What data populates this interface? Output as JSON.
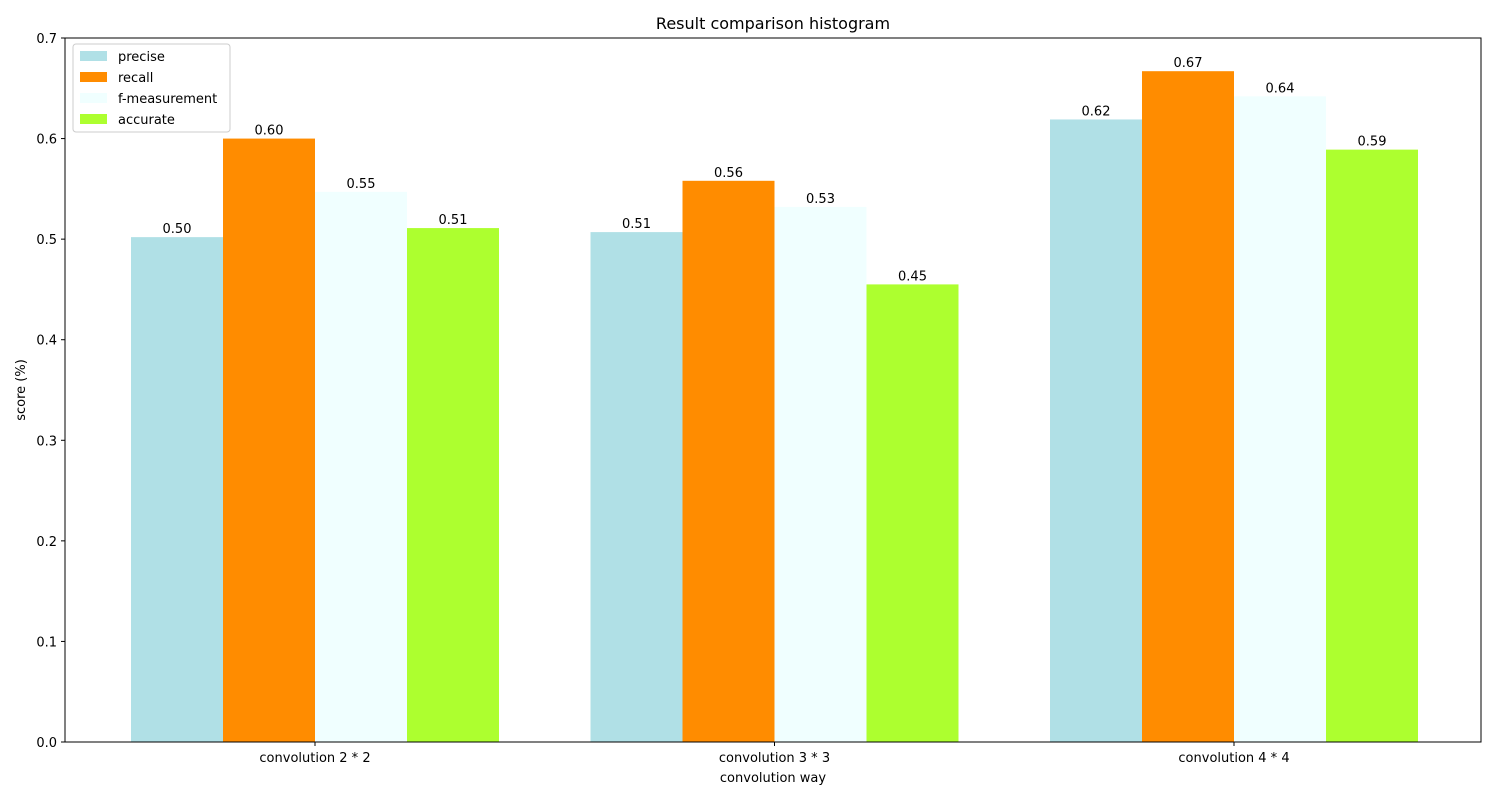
{
  "chart_data": {
    "type": "bar",
    "title": "Result comparison histogram",
    "xlabel": "convolution way",
    "ylabel": "score (%)",
    "categories": [
      "convolution 2 * 2",
      "convolution 3 * 3",
      "convolution 4 * 4"
    ],
    "series": [
      {
        "name": "precise",
        "color": "#b0e0e6",
        "values": [
          0.502,
          0.507,
          0.619
        ],
        "labels": [
          "0.50",
          "0.51",
          "0.62"
        ]
      },
      {
        "name": "recall",
        "color": "#ff8c00",
        "values": [
          0.6,
          0.558,
          0.667
        ],
        "labels": [
          "0.60",
          "0.56",
          "0.67"
        ]
      },
      {
        "name": "f-measurement",
        "color": "#f0ffff",
        "values": [
          0.547,
          0.532,
          0.642
        ],
        "labels": [
          "0.55",
          "0.53",
          "0.64"
        ]
      },
      {
        "name": "accurate",
        "color": "#adff2f",
        "values": [
          0.511,
          0.455,
          0.589
        ],
        "labels": [
          "0.51",
          "0.45",
          "0.59"
        ]
      }
    ],
    "ylim": [
      0.0,
      0.7
    ],
    "yticks": [
      "0.0",
      "0.1",
      "0.2",
      "0.3",
      "0.4",
      "0.5",
      "0.6",
      "0.7"
    ],
    "grid": false,
    "legend_position": "top-left"
  }
}
